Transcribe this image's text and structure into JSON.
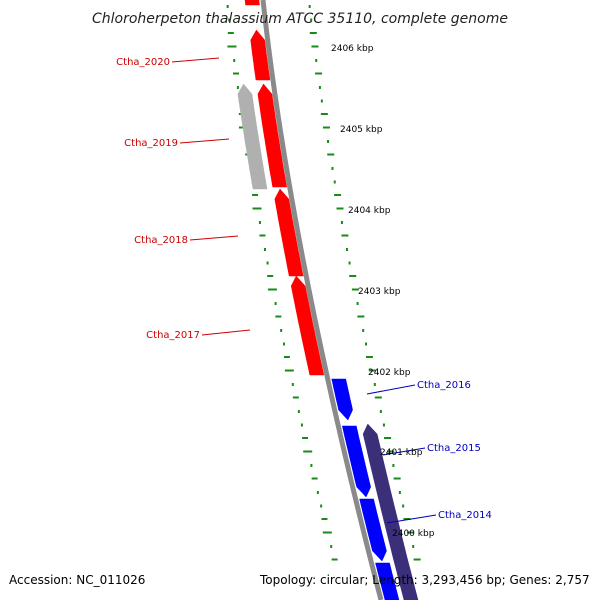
{
  "title": "Chloroherpeton thalassium ATCC 35110, complete genome",
  "accession_label": "Accession: NC_011026",
  "summary": "Topology: circular; Length: 3,293,456 bp; Genes: 2,757",
  "colors": {
    "backbone": "#8a8a8a",
    "forward_gene": "#ff0000",
    "reverse_gene": "#0000ff",
    "pseudo_forward": "#b0b0b0",
    "pseudo_reverse": "#3a2f78",
    "tick": "#1a8a1a",
    "forward_label": "#cc0000",
    "reverse_label": "#0000bb"
  },
  "ticks": [
    {
      "label": "2406 kbp"
    },
    {
      "label": "2405 kbp"
    },
    {
      "label": "2404 kbp"
    },
    {
      "label": "2403 kbp"
    },
    {
      "label": "2402 kbp"
    },
    {
      "label": "2401 kbp"
    },
    {
      "label": "2400 kbp"
    }
  ],
  "genes": [
    {
      "name": "Ctha_2020",
      "strand": "forward"
    },
    {
      "name": "Ctha_2019",
      "strand": "forward"
    },
    {
      "name": "Ctha_2018",
      "strand": "forward"
    },
    {
      "name": "Ctha_2017",
      "strand": "forward"
    },
    {
      "name": "Ctha_2016",
      "strand": "reverse"
    },
    {
      "name": "Ctha_2015",
      "strand": "reverse"
    },
    {
      "name": "Ctha_2014",
      "strand": "reverse"
    }
  ]
}
